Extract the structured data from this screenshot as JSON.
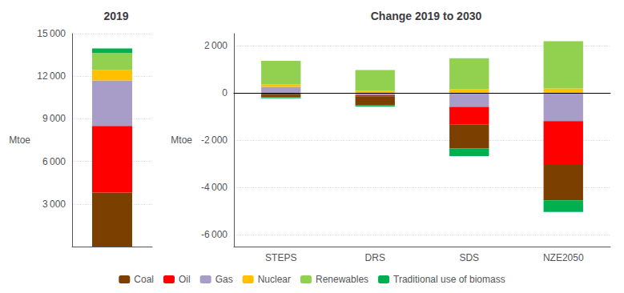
{
  "chart_data": [
    {
      "type": "bar",
      "title": "2019",
      "ylabel": "Mtoe",
      "categories": [
        null
      ],
      "stacked": true,
      "grid": true,
      "legend": "bottom",
      "series": [
        {
          "name": "Coal",
          "color": "#7B3F00",
          "values": [
            3800
          ]
        },
        {
          "name": "Oil",
          "color": "#FF0000",
          "values": [
            4700
          ]
        },
        {
          "name": "Gas",
          "color": "#A89CC8",
          "values": [
            3200
          ]
        },
        {
          "name": "Nuclear",
          "color": "#FFC000",
          "values": [
            730
          ]
        },
        {
          "name": "Renewables",
          "color": "#92D050",
          "values": [
            1200
          ]
        },
        {
          "name": "Traditional use of biomass",
          "color": "#00B050",
          "values": [
            330
          ]
        }
      ],
      "ylim": [
        0,
        15000
      ],
      "yticks": [
        {
          "value": 3000,
          "label": "3 000"
        },
        {
          "value": 6000,
          "label": "6 000"
        },
        {
          "value": 9000,
          "label": "9 000"
        },
        {
          "value": 12000,
          "label": "12 000"
        },
        {
          "value": 15000,
          "label": "15 000"
        }
      ]
    },
    {
      "type": "bar",
      "title": "Change 2019 to 2030",
      "ylabel": "Mtoe",
      "categories": [
        "STEPS",
        "DRS",
        "SDS",
        "NZE2050"
      ],
      "stacked": true,
      "grid": true,
      "legend": "bottom",
      "series": [
        {
          "name": "Coal",
          "color": "#7B3F00",
          "values": [
            0,
            0,
            0,
            0
          ]
        },
        {
          "name": "Oil",
          "color": "#FF0000",
          "values": [
            0,
            0,
            0,
            0
          ]
        },
        {
          "name": "Gas",
          "color": "#A89CC8",
          "values": [
            250,
            0,
            0,
            0
          ]
        },
        {
          "name": "Nuclear",
          "color": "#FFC000",
          "values": [
            100,
            80,
            160,
            180
          ]
        },
        {
          "name": "Renewables",
          "color": "#92D050",
          "values": [
            1000,
            880,
            1300,
            2000
          ]
        },
        {
          "name": "Traditional use of biomass",
          "color": "#00B050",
          "values": [
            0,
            0,
            0,
            0
          ]
        },
        {
          "name": "Nuclear",
          "color": "#FFC000",
          "values": [
            0,
            0,
            0,
            0
          ]
        },
        {
          "name": "Gas",
          "color": "#A89CC8",
          "values": [
            0,
            -100,
            -600,
            -1200
          ]
        },
        {
          "name": "Oil",
          "color": "#FF0000",
          "values": [
            -80,
            -50,
            -750,
            -1850
          ]
        },
        {
          "name": "Coal",
          "color": "#7B3F00",
          "values": [
            -100,
            -380,
            -1000,
            -1500
          ]
        },
        {
          "name": "Traditional use of biomass",
          "color": "#00B050",
          "values": [
            -50,
            -50,
            -330,
            -490
          ]
        }
      ],
      "ylim": [
        -6500,
        2500
      ],
      "yticks": [
        {
          "value": -6000,
          "label": "-6 000"
        },
        {
          "value": -4000,
          "label": "-4 000"
        },
        {
          "value": -2000,
          "label": "-2 000"
        },
        0,
        {
          "value": 2000,
          "label": "2 000"
        }
      ]
    }
  ]
}
